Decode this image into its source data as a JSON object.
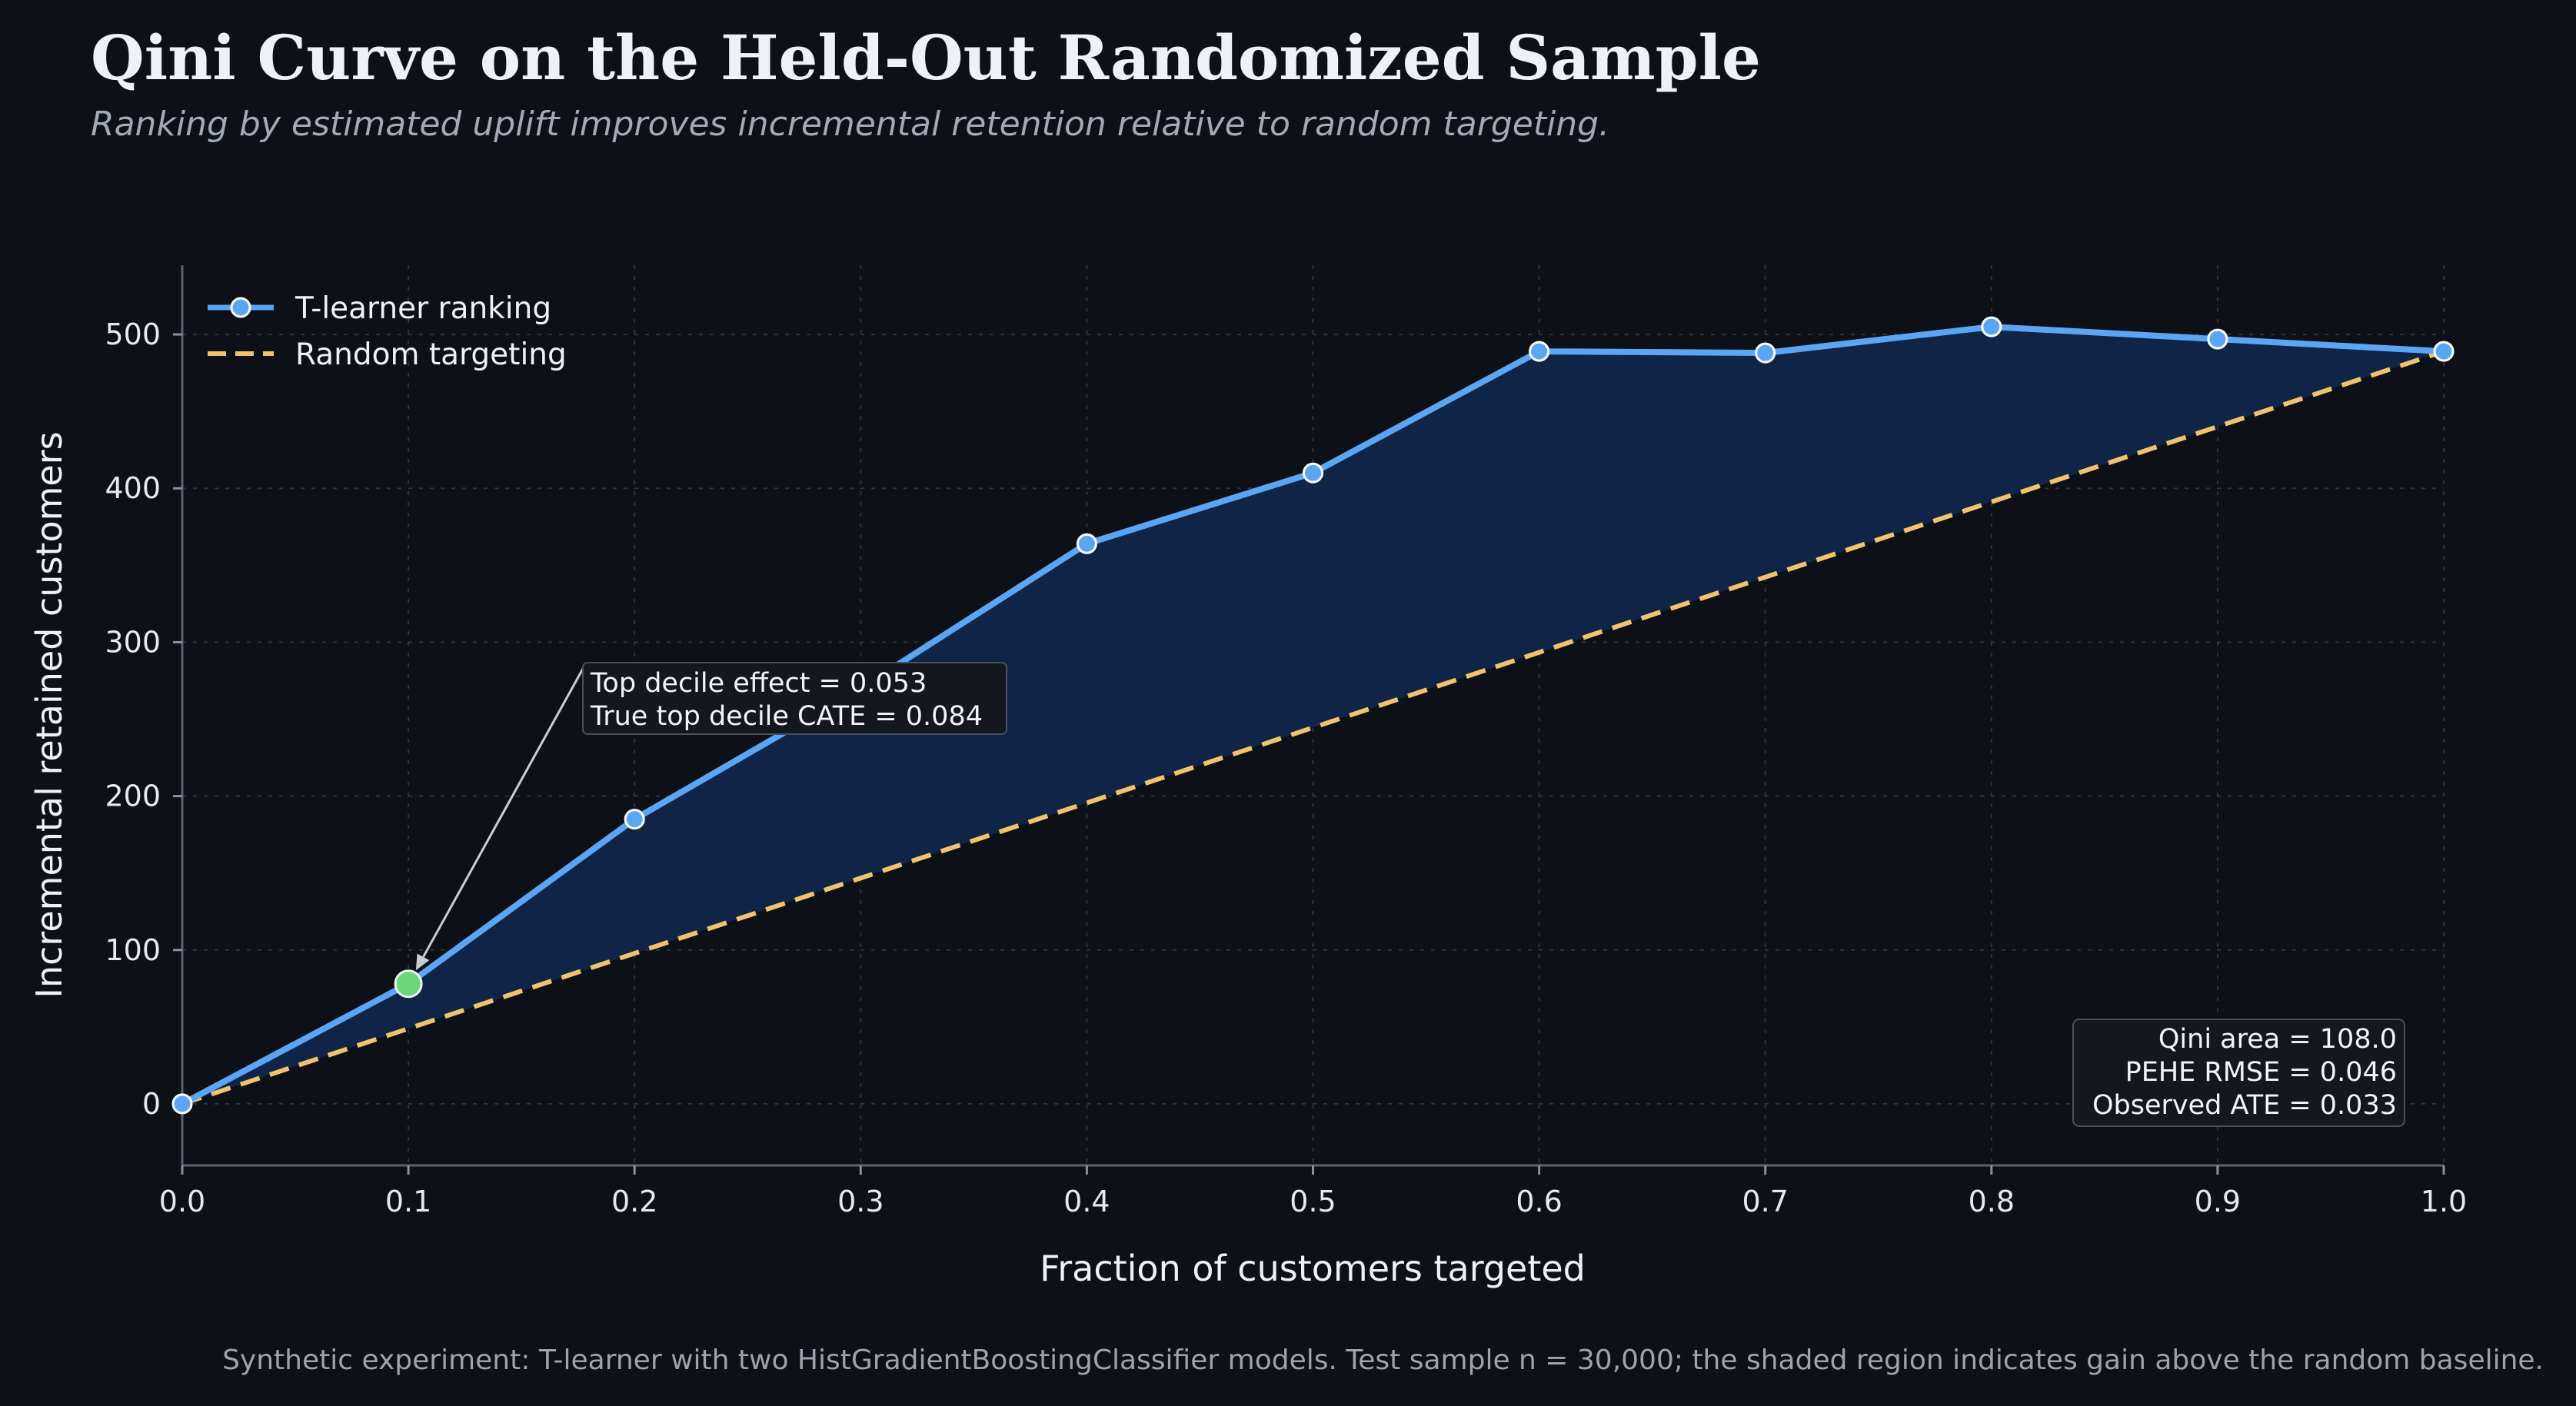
{
  "title": "Qini Curve on the Held-Out Randomized Sample",
  "subtitle": "Ranking by estimated uplift improves incremental retention relative to random targeting.",
  "footer": "Synthetic experiment: T-learner with two HistGradientBoostingClassifier models. Test sample n = 30,000; the shaded region indicates gain above the random baseline.",
  "colors": {
    "background": "#0d1017",
    "model_line": "#5aa6f5",
    "random_line": "#f2c46a",
    "fill": "#11264a",
    "highlight": "#6dd67a"
  },
  "chart_data": {
    "type": "line",
    "xlabel": "Fraction of customers targeted",
    "ylabel": "Incremental retained customers",
    "xlim": [
      0,
      1
    ],
    "ylim": [
      -40,
      545
    ],
    "x_ticks": [
      0.0,
      0.1,
      0.2,
      0.3,
      0.4,
      0.5,
      0.6,
      0.7,
      0.8,
      0.9,
      1.0
    ],
    "x_tick_labels": [
      "0.0",
      "0.1",
      "0.2",
      "0.3",
      "0.4",
      "0.5",
      "0.6",
      "0.7",
      "0.8",
      "0.9",
      "1.0"
    ],
    "y_ticks": [
      0,
      100,
      200,
      300,
      400,
      500
    ],
    "y_tick_labels": [
      "0",
      "100",
      "200",
      "300",
      "400",
      "500"
    ],
    "grid": true,
    "legend_position": "top-left",
    "series": [
      {
        "name": "T-learner ranking",
        "style": "solid-with-markers",
        "x": [
          0.0,
          0.1,
          0.2,
          0.3,
          0.4,
          0.5,
          0.6,
          0.7,
          0.8,
          0.9,
          1.0
        ],
        "y": [
          0,
          78,
          185,
          270,
          364,
          410,
          489,
          488,
          505,
          497,
          489
        ]
      },
      {
        "name": "Random targeting",
        "style": "dashed",
        "x": [
          0.0,
          1.0
        ],
        "y": [
          0,
          489
        ]
      }
    ],
    "shaded_region": "between T-learner ranking and Random targeting",
    "highlight_point": {
      "x": 0.1,
      "y": 78
    },
    "annotations": {
      "top_decile": {
        "lines": [
          "Top decile effect = 0.053",
          "True top decile CATE = 0.084"
        ],
        "arrow_to": {
          "x": 0.1,
          "y": 78
        },
        "anchor": {
          "x": 0.178,
          "y": 285
        }
      },
      "metrics": {
        "lines": [
          "Qini area = 108.0",
          "PEHE RMSE = 0.046",
          "Observed ATE = 0.033"
        ],
        "placement": "bottom-right"
      }
    }
  }
}
